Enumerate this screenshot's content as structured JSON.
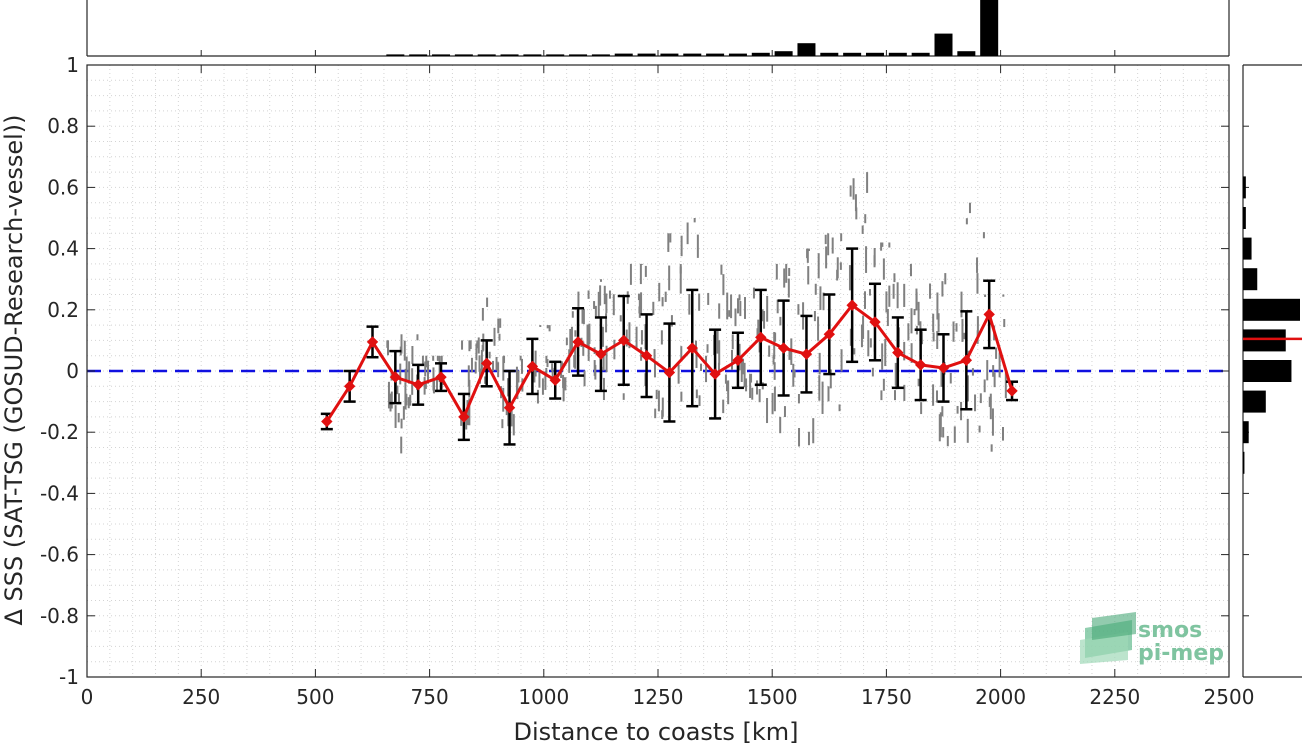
{
  "chart_data": {
    "type": "line",
    "xlabel": "Distance to coasts [km]",
    "ylabel": "Δ SSS (SAT-TSG (GOSUD-Research-vessel))",
    "xlim": [
      0,
      2500
    ],
    "ylim": [
      -1,
      1
    ],
    "x_ticks": [
      "0",
      "250",
      "500",
      "750",
      "1000",
      "1250",
      "1500",
      "1750",
      "2000",
      "2250",
      "2500"
    ],
    "y_ticks": [
      "-1",
      "-0.8",
      "-0.6",
      "-0.4",
      "-0.2",
      "0",
      "0.2",
      "0.4",
      "0.6",
      "0.8",
      "1"
    ],
    "grid": true,
    "reference_line": {
      "y": 0,
      "style": "dashed",
      "color": "#1010e0"
    },
    "colors": {
      "mean": "#e01010",
      "errorbar": "#000000",
      "scatter": "#808080",
      "histogram": "#000000"
    },
    "series": [
      {
        "x": [
          525,
          575,
          625,
          675,
          725,
          775,
          825,
          875,
          925,
          975,
          1025,
          1075,
          1125,
          1175,
          1225,
          1275,
          1325,
          1375,
          1425,
          1475,
          1525,
          1575,
          1625,
          1675,
          1725,
          1775,
          1825,
          1875,
          1925,
          1975,
          2025
        ],
        "y": [
          -0.165,
          -0.05,
          0.095,
          -0.02,
          -0.045,
          -0.02,
          -0.15,
          0.025,
          -0.12,
          0.015,
          -0.03,
          0.095,
          0.055,
          0.1,
          0.05,
          -0.005,
          0.075,
          -0.01,
          0.035,
          0.11,
          0.075,
          0.055,
          0.12,
          0.215,
          0.16,
          0.06,
          0.02,
          0.01,
          0.035,
          0.185,
          -0.065
        ],
        "err": [
          0.025,
          0.05,
          0.05,
          0.085,
          0.065,
          0.045,
          0.075,
          0.075,
          0.12,
          0.09,
          0.06,
          0.11,
          0.12,
          0.145,
          0.135,
          0.16,
          0.19,
          0.145,
          0.09,
          0.155,
          0.155,
          0.125,
          0.13,
          0.185,
          0.125,
          0.115,
          0.115,
          0.11,
          0.16,
          0.11,
          0.03
        ]
      }
    ],
    "scatter_density": [
      {
        "x": 680,
        "ymin": -0.3,
        "ymax": 0.1
      },
      {
        "x": 700,
        "ymin": -0.15,
        "ymax": 0.12
      },
      {
        "x": 760,
        "ymin": -0.08,
        "ymax": 0.05
      },
      {
        "x": 840,
        "ymin": -0.2,
        "ymax": 0.1
      },
      {
        "x": 880,
        "ymin": -0.05,
        "ymax": 0.24
      },
      {
        "x": 930,
        "ymin": -0.25,
        "ymax": 0.05
      },
      {
        "x": 1000,
        "ymin": -0.12,
        "ymax": 0.15
      },
      {
        "x": 1060,
        "ymin": -0.1,
        "ymax": 0.2
      },
      {
        "x": 1100,
        "ymin": -0.05,
        "ymax": 0.28
      },
      {
        "x": 1150,
        "ymin": -0.1,
        "ymax": 0.3
      },
      {
        "x": 1200,
        "ymin": -0.05,
        "ymax": 0.35
      },
      {
        "x": 1260,
        "ymin": -0.2,
        "ymax": 0.45
      },
      {
        "x": 1320,
        "ymin": -0.18,
        "ymax": 0.5
      },
      {
        "x": 1380,
        "ymin": -0.15,
        "ymax": 0.35
      },
      {
        "x": 1430,
        "ymin": -0.1,
        "ymax": 0.25
      },
      {
        "x": 1480,
        "ymin": -0.2,
        "ymax": 0.3
      },
      {
        "x": 1530,
        "ymin": -0.3,
        "ymax": 0.35
      },
      {
        "x": 1580,
        "ymin": -0.25,
        "ymax": 0.4
      },
      {
        "x": 1630,
        "ymin": -0.15,
        "ymax": 0.45
      },
      {
        "x": 1690,
        "ymin": -0.1,
        "ymax": 0.65
      },
      {
        "x": 1740,
        "ymin": -0.1,
        "ymax": 0.42
      },
      {
        "x": 1790,
        "ymin": -0.15,
        "ymax": 0.35
      },
      {
        "x": 1840,
        "ymin": -0.2,
        "ymax": 0.3
      },
      {
        "x": 1890,
        "ymin": -0.25,
        "ymax": 0.32
      },
      {
        "x": 1940,
        "ymin": -0.25,
        "ymax": 0.55
      },
      {
        "x": 1990,
        "ymin": -0.3,
        "ymax": 0.25
      }
    ],
    "top_histogram": {
      "bins": [
        675,
        725,
        775,
        825,
        875,
        925,
        975,
        1025,
        1075,
        1125,
        1175,
        1225,
        1275,
        1325,
        1375,
        1425,
        1475,
        1525,
        1575,
        1625,
        1675,
        1725,
        1775,
        1825,
        1875,
        1925,
        1975
      ],
      "counts": [
        1,
        1,
        1,
        1,
        1,
        1,
        1,
        1,
        1,
        1,
        1.5,
        1.5,
        1.5,
        1.5,
        1.5,
        1.5,
        2,
        3,
        8,
        2,
        2,
        2,
        2,
        2,
        14,
        3,
        35
      ]
    },
    "right_histogram": {
      "bins": [
        0.6,
        0.5,
        0.4,
        0.3,
        0.2,
        0.1,
        0.0,
        -0.1,
        -0.2,
        -0.3
      ],
      "counts": [
        1,
        1,
        3,
        5,
        20,
        15,
        17,
        8,
        2,
        0.5
      ],
      "mean_marker": 0.105
    },
    "logo": {
      "line1": "smos",
      "line2": "pi-mep"
    }
  }
}
